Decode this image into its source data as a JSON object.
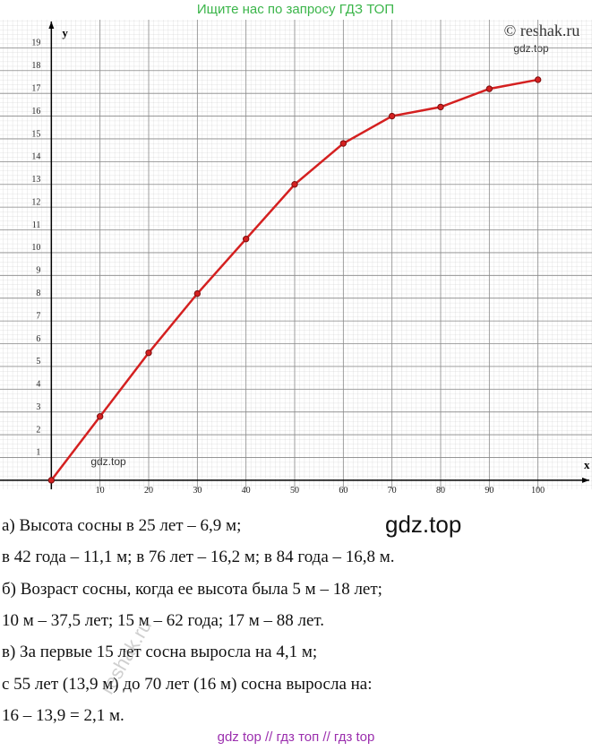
{
  "chart_data": {
    "type": "line",
    "x_label": "x",
    "y_label": "y",
    "x": [
      0,
      10,
      20,
      30,
      40,
      50,
      60,
      70,
      80,
      90,
      100
    ],
    "series": [
      {
        "name": "Высота сосны",
        "color": "#d42020",
        "values": [
          0,
          2.8,
          5.6,
          8.2,
          10.6,
          13.0,
          14.8,
          16.0,
          16.4,
          17.2,
          17.6
        ]
      }
    ],
    "xlim": [
      -10,
      110
    ],
    "ylim": [
      -0.4,
      20
    ],
    "xticks": [
      10,
      20,
      30,
      40,
      50,
      60,
      70,
      80,
      90,
      100
    ],
    "yticks": [
      1,
      2,
      3,
      4,
      5,
      6,
      7,
      8,
      9,
      10,
      11,
      12,
      13,
      14,
      15,
      16,
      17,
      18,
      19
    ],
    "grid": true
  },
  "text": {
    "lines": [
      "а) Высота сосны в 25 лет – 6,9 м;",
      "в 42 года – 11,1 м;    в 76 лет – 16,2 м;   в 84 года – 16,8 м.",
      "б) Возраст сосны, когда ее высота была 5 м – 18 лет;",
      "10 м – 37,5 лет;    15 м – 62 года;    17 м – 88 лет.",
      "в) За первые 15 лет сосна выросла на 4,1 м;",
      "с 55 лет (13,9 м) до 70 лет (16 м) сосна выросла на:",
      "16 – 13,9 = 2,1 м."
    ]
  },
  "watermarks": {
    "search": "Ищите нас по запросу ГДЗ ТОП",
    "reshak": "© reshak.ru",
    "gdz_small": "gdz.top",
    "gdz_big": "gdz.top",
    "reshak_rotated": "reshak.ru",
    "footer": "gdz top  //  гдз топ  //  гдз top"
  }
}
